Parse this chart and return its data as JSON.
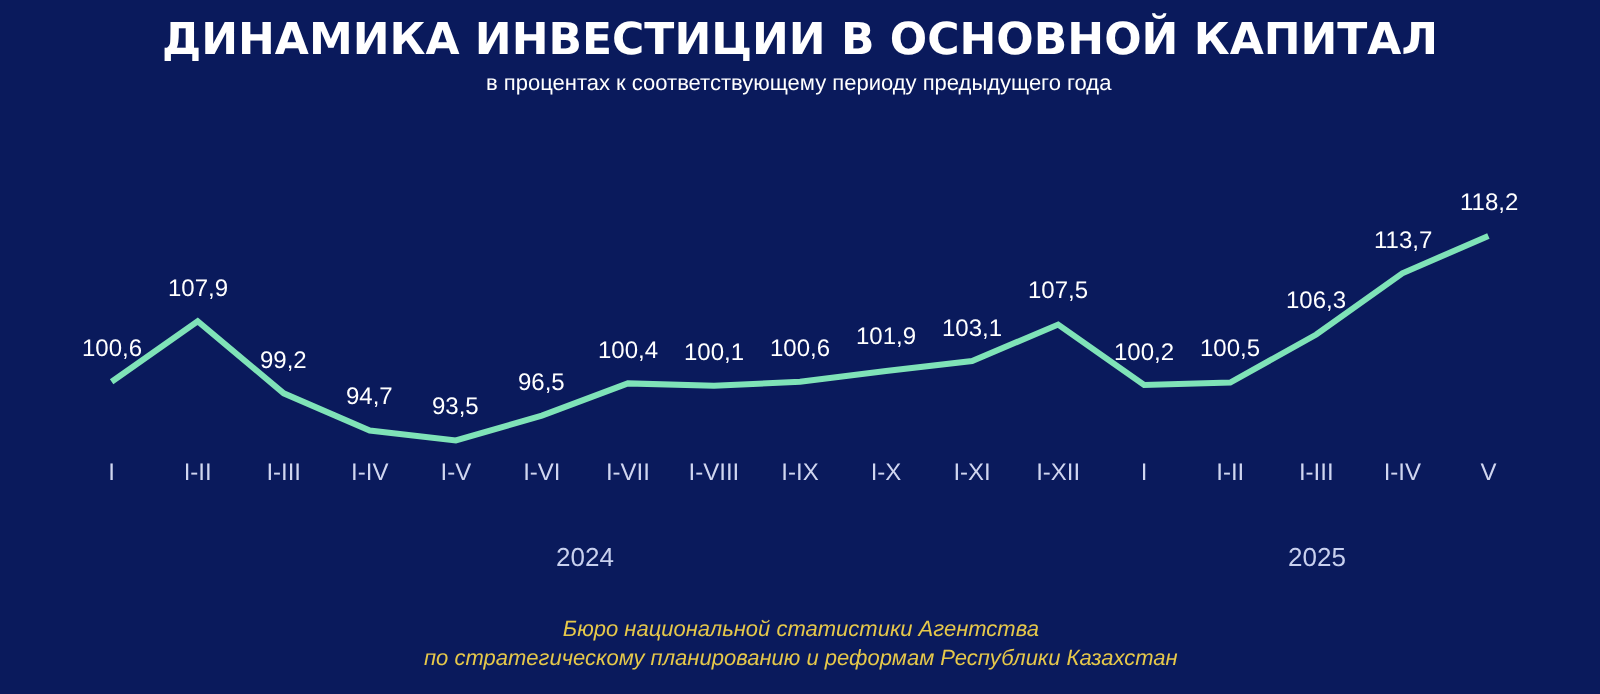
{
  "chart_data": {
    "type": "line",
    "title": "ДИНАМИКА ИНВЕСТИЦИИ В ОСНОВНОЙ КАПИТАЛ",
    "subtitle": "в процентах к соответствующему периоду предыдущего года",
    "categories": [
      "I",
      "I-II",
      "I-III",
      "I-IV",
      "I-V",
      "I-VI",
      "I-VII",
      "I-VIII",
      "I-IX",
      "I-X",
      "I-XI",
      "I-XII",
      "I",
      "I-II",
      "I-III",
      "I-IV",
      "V"
    ],
    "series": [
      {
        "color": "#7fe3b8",
        "values": [
          100.6,
          107.9,
          99.2,
          94.7,
          93.5,
          96.5,
          100.4,
          100.1,
          100.6,
          101.9,
          103.1,
          107.5,
          100.2,
          100.5,
          106.3,
          113.7,
          118.2
        ],
        "value_labels": [
          "100,6",
          "107,9",
          "99,2",
          "94,7",
          "93,5",
          "96,5",
          "100,4",
          "100,1",
          "100,6",
          "101,9",
          "103,1",
          "107,5",
          "100,2",
          "100,5",
          "106,3",
          "113,7",
          "118,2"
        ]
      }
    ],
    "tick_labels": "x",
    "legend": false,
    "marker": "none",
    "line_style": "solid",
    "annotations": [
      "2024",
      "2025",
      "Бюро национальной статистики Агентства по стратегическому планированию и реформам Республики Казахстан"
    ]
  }
}
